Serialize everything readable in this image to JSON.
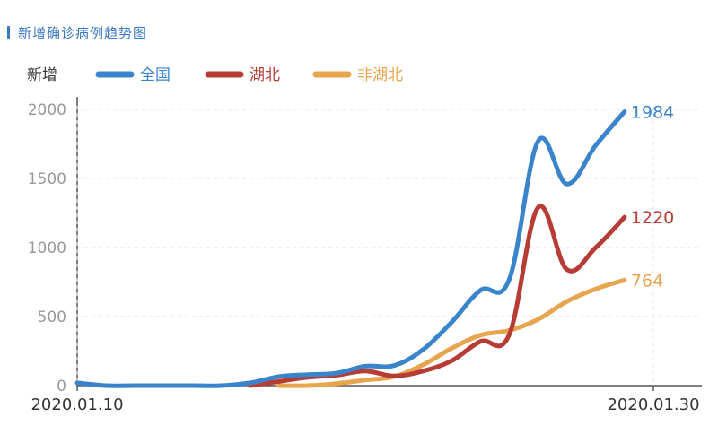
{
  "header": {
    "title": "新增确诊病例趋势图"
  },
  "chart_data": {
    "type": "line",
    "ylabel": "新增",
    "ylim": [
      0,
      2000
    ],
    "yticks": [
      0,
      500,
      1000,
      1500,
      2000
    ],
    "xlim": [
      "2020.01.10",
      "2020.01.30"
    ],
    "x_tick_labels": [
      "2020.01.10",
      "2020.01.30"
    ],
    "grid": "horizontal-dashed",
    "legend_position": "top",
    "series": [
      {
        "name": "全国",
        "color": "#3a84cc",
        "end_label": "1984",
        "points": [
          [
            "2020.01.10",
            20
          ],
          [
            "2020.01.11",
            0
          ],
          [
            "2020.01.12",
            0
          ],
          [
            "2020.01.13",
            0
          ],
          [
            "2020.01.14",
            0
          ],
          [
            "2020.01.15",
            0
          ],
          [
            "2020.01.16",
            20
          ],
          [
            "2020.01.17",
            65
          ],
          [
            "2020.01.18",
            80
          ],
          [
            "2020.01.19",
            90
          ],
          [
            "2020.01.20",
            140
          ],
          [
            "2020.01.21",
            145
          ],
          [
            "2020.01.22",
            260
          ],
          [
            "2020.01.23",
            460
          ],
          [
            "2020.01.24",
            690
          ],
          [
            "2020.01.25",
            770
          ],
          [
            "2020.01.26",
            1770
          ],
          [
            "2020.01.27",
            1460
          ],
          [
            "2020.01.28",
            1740
          ],
          [
            "2020.01.29",
            1984
          ]
        ]
      },
      {
        "name": "湖北",
        "color": "#b83c36",
        "end_label": "1220",
        "points": [
          [
            "2020.01.16",
            0
          ],
          [
            "2020.01.17",
            30
          ],
          [
            "2020.01.18",
            60
          ],
          [
            "2020.01.19",
            75
          ],
          [
            "2020.01.20",
            105
          ],
          [
            "2020.01.21",
            70
          ],
          [
            "2020.01.22",
            105
          ],
          [
            "2020.01.23",
            180
          ],
          [
            "2020.01.24",
            320
          ],
          [
            "2020.01.25",
            370
          ],
          [
            "2020.01.26",
            1290
          ],
          [
            "2020.01.27",
            840
          ],
          [
            "2020.01.28",
            1000
          ],
          [
            "2020.01.29",
            1220
          ]
        ]
      },
      {
        "name": "非湖北",
        "color": "#e6a54e",
        "end_label": "764",
        "points": [
          [
            "2020.01.17",
            0
          ],
          [
            "2020.01.18",
            0
          ],
          [
            "2020.01.19",
            15
          ],
          [
            "2020.01.20",
            40
          ],
          [
            "2020.01.21",
            65
          ],
          [
            "2020.01.22",
            150
          ],
          [
            "2020.01.23",
            270
          ],
          [
            "2020.01.24",
            365
          ],
          [
            "2020.01.25",
            400
          ],
          [
            "2020.01.26",
            480
          ],
          [
            "2020.01.27",
            610
          ],
          [
            "2020.01.28",
            700
          ],
          [
            "2020.01.29",
            764
          ]
        ]
      }
    ]
  }
}
